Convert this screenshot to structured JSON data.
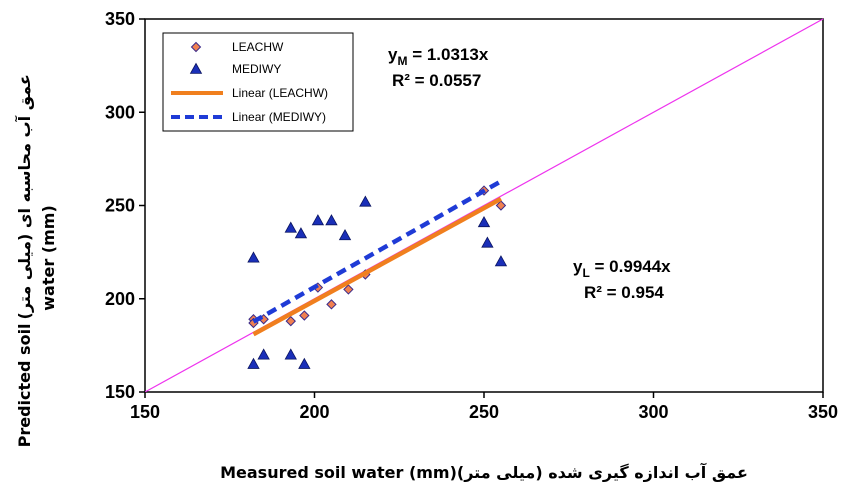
{
  "chart_data": {
    "type": "scatter",
    "xlabel": "عمق آب اندازه گیری شده (میلی متر)(Measured soil water (mm",
    "xlabel_parts": {
      "fa": "عمق آب اندازه گیری شده (میلی متر)",
      "en": "Measured soil water (mm)"
    },
    "ylabel_parts": {
      "en_top": "Predicted soil",
      "fa": "عمق آب محاسبه ای (میلی متر)",
      "en_bottom": "water (mm)"
    },
    "xlim": [
      150,
      350
    ],
    "ylim": [
      150,
      350
    ],
    "xticks": [
      "150",
      "200",
      "250",
      "300",
      "350"
    ],
    "yticks": [
      "150",
      "200",
      "250",
      "300",
      "350"
    ],
    "grid": false,
    "legend_position": "top-left",
    "series": [
      {
        "name": "LEACHW",
        "kind": "points",
        "marker": "diamond",
        "color": "#f08050",
        "x": [
          182,
          182,
          185,
          193,
          197,
          201,
          205,
          210,
          215,
          250,
          255
        ],
        "y": [
          189,
          187,
          189,
          188,
          191,
          206,
          197,
          205,
          213,
          258,
          250
        ]
      },
      {
        "name": "MEDIWY",
        "kind": "points",
        "marker": "triangle",
        "color": "#1a2fb8",
        "x": [
          182,
          182,
          185,
          193,
          193,
          196,
          197,
          201,
          205,
          209,
          215,
          250,
          251,
          255
        ],
        "y": [
          222,
          165,
          170,
          170,
          238,
          235,
          165,
          242,
          242,
          234,
          252,
          241,
          230,
          220
        ]
      },
      {
        "name": "Linear (LEACHW)",
        "kind": "trendline",
        "color": "#f07f1e",
        "slope": 0.9944,
        "x": [
          182,
          255
        ]
      },
      {
        "name": "Linear (MEDIWY)",
        "kind": "trendline",
        "color": "#1f3bd6",
        "slope": 1.0313,
        "x": [
          182,
          255
        ]
      },
      {
        "name": "1:1",
        "kind": "reference",
        "color": "#ee33ee",
        "x": [
          150,
          350
        ],
        "y": [
          150,
          350
        ]
      }
    ],
    "annotations": [
      {
        "id": "mediwy_eq",
        "main": "y",
        "sub": "M",
        "rest": " = 1.0313x",
        "r2": "R² = 0.0557"
      },
      {
        "id": "leachw_eq",
        "main": "y",
        "sub": "L",
        "rest": " = 0.9944x",
        "r2": "R² = 0.954"
      }
    ]
  }
}
